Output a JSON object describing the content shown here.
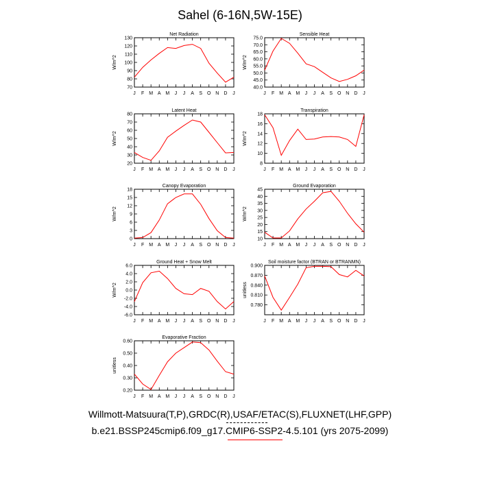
{
  "title": "Sahel (6-16N,5W-15E)",
  "captions": {
    "line1": "Willmott-Matsuura(T,P),GRDC(R),USAF/ETAC(S),FLUXNET(LHF,GPP)",
    "line2": "b.e21.BSSP245cmip6.f09_g17.CMIP6-SSP2-4.5.101 (yrs 2075-2099)"
  },
  "colors": {
    "line": "#ff0000",
    "legend_obs": "#000000",
    "legend_model": "#ff0000"
  },
  "months": [
    "J",
    "F",
    "M",
    "A",
    "M",
    "J",
    "J",
    "A",
    "S",
    "O",
    "N",
    "D",
    "J"
  ],
  "chart_data": [
    {
      "type": "line",
      "title": "Net Radiation",
      "ylabel": "W/m^2",
      "ylim": [
        70,
        130
      ],
      "yticks": [
        "70",
        "80",
        "90",
        "100",
        "110",
        "120",
        "130"
      ],
      "yticks_values": [
        70,
        80,
        90,
        100,
        110,
        120,
        130
      ],
      "values": [
        82,
        94,
        103,
        111,
        118,
        117,
        120.5,
        122,
        117,
        99,
        87,
        76,
        82
      ]
    },
    {
      "type": "line",
      "title": "Sensible Heat",
      "ylabel": "W/m^2",
      "ylim": [
        40,
        75
      ],
      "yticks": [
        "40.0",
        "45.0",
        "50.0",
        "55.0",
        "60.0",
        "65.0",
        "70.0",
        "75.0"
      ],
      "yticks_values": [
        40,
        45,
        50,
        55,
        60,
        65,
        70,
        75
      ],
      "values": [
        52,
        65.5,
        74.5,
        71,
        64,
        56.5,
        54.5,
        50.5,
        46.5,
        44,
        45.5,
        48,
        52
      ]
    },
    {
      "type": "line",
      "title": "Latent Heat",
      "ylabel": "W/m^2",
      "ylim": [
        20,
        80
      ],
      "yticks": [
        "20",
        "30",
        "40",
        "50",
        "60",
        "70",
        "80"
      ],
      "yticks_values": [
        20,
        30,
        40,
        50,
        60,
        70,
        80
      ],
      "values": [
        33,
        27,
        23.5,
        35,
        51.5,
        59,
        66,
        72.5,
        70,
        57.5,
        45,
        32.5,
        33
      ]
    },
    {
      "type": "line",
      "title": "Transpiration",
      "ylabel": "W/m^2",
      "ylim": [
        8,
        18
      ],
      "yticks": [
        "8",
        "10",
        "12",
        "14",
        "16",
        "18"
      ],
      "yticks_values": [
        8,
        10,
        12,
        14,
        16,
        18
      ],
      "values": [
        17.8,
        15.2,
        9.6,
        12.6,
        14.9,
        12.8,
        12.9,
        13.3,
        13.4,
        13.3,
        12.8,
        11.4,
        17.8
      ]
    },
    {
      "type": "line",
      "title": "Canopy Evaporation",
      "ylabel": "W/m^2",
      "ylim": [
        0,
        18
      ],
      "yticks": [
        "0",
        "3",
        "6",
        "9",
        "12",
        "15",
        "18"
      ],
      "yticks_values": [
        0,
        3,
        6,
        9,
        12,
        15,
        18
      ],
      "values": [
        0.2,
        0.4,
        2.2,
        6.8,
        12.7,
        15.0,
        16.3,
        16.3,
        12.5,
        7.3,
        2.9,
        0.4,
        0.2
      ]
    },
    {
      "type": "line",
      "title": "Ground Evaporation",
      "ylabel": "W/m^2",
      "ylim": [
        10,
        45
      ],
      "yticks": [
        "10",
        "15",
        "20",
        "25",
        "30",
        "35",
        "40",
        "45"
      ],
      "yticks_values": [
        10,
        15,
        20,
        25,
        30,
        35,
        40,
        45
      ],
      "values": [
        14.5,
        10.5,
        10.5,
        15.5,
        24,
        31,
        36.5,
        42.5,
        43.5,
        36.5,
        28,
        20.5,
        14.5
      ]
    },
    {
      "type": "line",
      "title": "Ground Heat + Snow Melt",
      "ylabel": "W/m^2",
      "ylim": [
        -6,
        6
      ],
      "yticks": [
        "-6.0",
        "-4.0",
        "-2.0",
        "0.0",
        "2.0",
        "4.0",
        "6.0"
      ],
      "yticks_values": [
        -6,
        -4,
        -2,
        0,
        2,
        4,
        6
      ],
      "values": [
        -2.8,
        1.8,
        4.2,
        4.6,
        2.8,
        0.4,
        -0.9,
        -1.1,
        0.4,
        -0.3,
        -2.8,
        -4.6,
        -2.8
      ]
    },
    {
      "type": "line",
      "title": "Soil moisture factor (BTRAN or BTRANMN)",
      "ylabel": "unitless",
      "ylim": [
        0.75,
        0.9
      ],
      "yticks": [
        "0.780",
        "0.810",
        "0.840",
        "0.870",
        "0.900"
      ],
      "yticks_values": [
        0.78,
        0.81,
        0.84,
        0.87,
        0.9
      ],
      "values": [
        0.868,
        0.803,
        0.764,
        0.803,
        0.843,
        0.893,
        0.897,
        0.897,
        0.896,
        0.872,
        0.865,
        0.885,
        0.868
      ]
    },
    {
      "type": "line",
      "title": "Evaporative Fraction",
      "ylabel": "unitless",
      "ylim": [
        0.2,
        0.6
      ],
      "yticks": [
        "0.20",
        "0.30",
        "0.40",
        "0.50",
        "0.60"
      ],
      "yticks_values": [
        0.2,
        0.3,
        0.4,
        0.5,
        0.6
      ],
      "values": [
        0.33,
        0.25,
        0.205,
        0.32,
        0.43,
        0.5,
        0.545,
        0.59,
        0.585,
        0.525,
        0.435,
        0.35,
        0.33
      ]
    }
  ]
}
